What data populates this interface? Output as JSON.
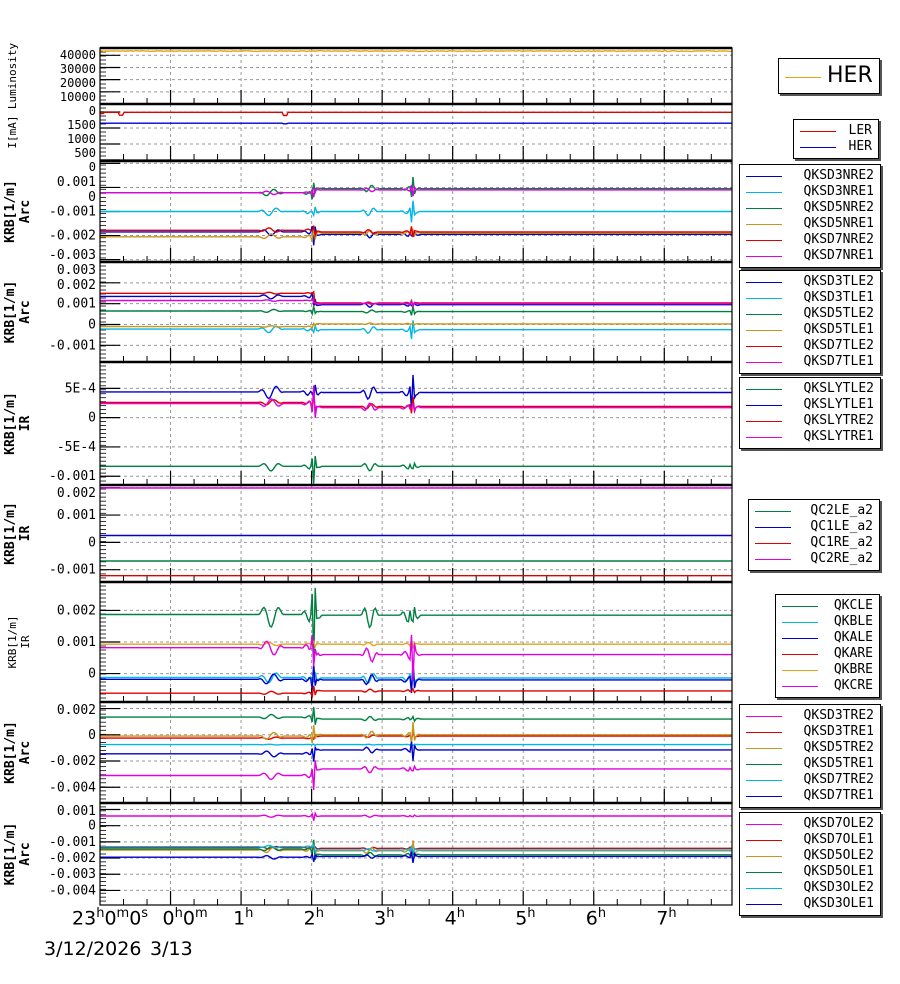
{
  "chart_data": {
    "type": "line",
    "title": "",
    "x_axis": {
      "unit": "hours since 3/13 0h",
      "range": [
        -1,
        7.96
      ],
      "tick_labels": [
        {
          "x": -1,
          "text": "23",
          "sup": "h",
          "tail": "0",
          "sup2": "m",
          "tail2": "0",
          "sup3": "s"
        },
        {
          "x": 0,
          "text": "0",
          "sup": "h",
          "tail": "0",
          "sup2": "m"
        },
        {
          "x": 1,
          "text": "1",
          "sup": "h"
        },
        {
          "x": 2,
          "text": "2",
          "sup": "h"
        },
        {
          "x": 3,
          "text": "3",
          "sup": "h"
        },
        {
          "x": 4,
          "text": "4",
          "sup": "h"
        },
        {
          "x": 5,
          "text": "5",
          "sup": "h"
        },
        {
          "x": 6,
          "text": "6",
          "sup": "h"
        },
        {
          "x": 7,
          "text": "7",
          "sup": "h"
        }
      ],
      "date_labels": [
        "3/12/2026",
        "3/13"
      ],
      "grid": true
    },
    "panels": [
      {
        "id": "luminosity",
        "ylabel": "Luminosity",
        "ylabel_style": "small",
        "ylim": [
          0,
          46000
        ],
        "yticks": [
          0,
          10000,
          20000,
          30000,
          40000
        ],
        "ytick_labels": [
          "0",
          "10000",
          "20000",
          "30000",
          "40000"
        ],
        "legend": {
          "style": "big",
          "entries": [
            {
              "name": "HER",
              "color": "#e8a317"
            }
          ]
        },
        "series": [
          {
            "name": "HER",
            "color": "#e8a317",
            "base": 43500,
            "noise": 600,
            "events": []
          }
        ]
      },
      {
        "id": "current",
        "ylabel": "I[mA]",
        "ylabel_style": "small",
        "ylim": [
          0,
          1750
        ],
        "yticks": [
          0,
          500,
          1000,
          1500
        ],
        "ytick_labels": [
          "0",
          "500",
          "1000",
          "1500"
        ],
        "legend": {
          "style": "normal",
          "entries": [
            {
              "name": "LER",
              "color": "#e00000"
            },
            {
              "name": "HER",
              "color": "#0000cc"
            }
          ]
        },
        "series": [
          {
            "name": "LER",
            "color": "#e00000",
            "base": 1490,
            "dips": [
              [
                -0.7,
                -90
              ],
              [
                1.62,
                -100
              ],
              [
                -0.98,
                -40
              ]
            ]
          },
          {
            "name": "HER",
            "color": "#0000cc",
            "base": 1150,
            "dips": [
              [
                1.62,
                -20
              ]
            ]
          }
        ]
      },
      {
        "id": "arc-nre",
        "ylabel": "KRB[1/m]",
        "ylabel2": "Arc",
        "ylim": [
          -0.0031,
          0.0011
        ],
        "yticks": [
          -0.003,
          -0.002,
          -0.001,
          0,
          0.001
        ],
        "ytick_labels": [
          "-0.003",
          "-0.002",
          "-0.001",
          "0",
          "0.001"
        ],
        "legend": {
          "style": "normal",
          "entries": [
            {
              "name": "QKSD3NRE2",
              "color": "#0000cc"
            },
            {
              "name": "QKSD3NRE1",
              "color": "#00b8e8"
            },
            {
              "name": "QKSD5NRE2",
              "color": "#008040"
            },
            {
              "name": "QKSD5NRE1",
              "color": "#c8961e"
            },
            {
              "name": "QKSD7NRE2",
              "color": "#e00000"
            },
            {
              "name": "QKSD7NRE1",
              "color": "#e000e0"
            }
          ]
        },
        "series": [
          {
            "name": "QKSD3NRE2",
            "color": "#0000cc",
            "base": -0.00185,
            "after": -0.00195,
            "amp": 0.00015
          },
          {
            "name": "QKSD3NRE1",
            "color": "#00b8e8",
            "base": -0.001,
            "after": -0.001,
            "amp": 0.00018
          },
          {
            "name": "QKSD5NRE2",
            "color": "#008040",
            "base": -0.00022,
            "after": -5e-05,
            "amp": 0.00015
          },
          {
            "name": "QKSD5NRE1",
            "color": "#c8961e",
            "base": -0.00205,
            "after": -0.0019,
            "amp": 0.00012
          },
          {
            "name": "QKSD7NRE2",
            "color": "#e00000",
            "base": -0.00178,
            "after": -0.00185,
            "amp": 0.0001
          },
          {
            "name": "QKSD7NRE1",
            "color": "#e000e0",
            "base": -0.00022,
            "after": -0.0001,
            "amp": 8e-05
          }
        ]
      },
      {
        "id": "arc-tle",
        "ylabel": "KRB[1/m]",
        "ylabel2": "Arc",
        "ylim": [
          -0.0018,
          0.003
        ],
        "yticks": [
          -0.001,
          0,
          0.001,
          0.002,
          0.003
        ],
        "ytick_labels": [
          "-0.001",
          "0",
          "0.001",
          "0.002",
          "0.003"
        ],
        "legend": {
          "style": "normal",
          "entries": [
            {
              "name": "QKSD3TLE2",
              "color": "#0000cc"
            },
            {
              "name": "QKSD3TLE1",
              "color": "#00b8e8"
            },
            {
              "name": "QKSD5TLE2",
              "color": "#008040"
            },
            {
              "name": "QKSD5TLE1",
              "color": "#c8961e"
            },
            {
              "name": "QKSD7TLE2",
              "color": "#e00000"
            },
            {
              "name": "QKSD7TLE1",
              "color": "#e000e0"
            }
          ]
        },
        "series": [
          {
            "name": "QKSD3TLE2",
            "color": "#0000cc",
            "base": 0.00135,
            "after": 0.00095,
            "amp": 0.00012
          },
          {
            "name": "QKSD3TLE1",
            "color": "#00b8e8",
            "base": -0.00022,
            "after": -0.00025,
            "amp": 0.00018
          },
          {
            "name": "QKSD5TLE2",
            "color": "#008040",
            "base": 0.00065,
            "after": 0.00062,
            "amp": 8e-05
          },
          {
            "name": "QKSD5TLE1",
            "color": "#c8961e",
            "base": -0.0001,
            "after": 3e-05,
            "amp": 4e-05
          },
          {
            "name": "QKSD7TLE2",
            "color": "#e00000",
            "base": 0.0015,
            "after": 0.00103,
            "amp": 5e-05
          },
          {
            "name": "QKSD7TLE1",
            "color": "#e000e0",
            "base": 0.00115,
            "after": 0.001,
            "amp": 4e-05
          }
        ]
      },
      {
        "id": "ir-slyt",
        "ylabel": "KRB[1/m]",
        "ylabel2": "IR",
        "ylim": [
          -0.00115,
          0.00095
        ],
        "yticks": [
          -0.001,
          -0.0005,
          0,
          0.0005
        ],
        "ytick_labels": [
          "-0.001",
          "-5E-4",
          "0",
          "5E-4"
        ],
        "legend": {
          "style": "normal",
          "entries": [
            {
              "name": "QKSLYTLE2",
              "color": "#008040"
            },
            {
              "name": "QKSLYTLE1",
              "color": "#0000cc"
            },
            {
              "name": "QKSLYTRE2",
              "color": "#e00000"
            },
            {
              "name": "QKSLYTRE1",
              "color": "#e000e0"
            }
          ]
        },
        "series": [
          {
            "name": "QKSLYTLE2",
            "color": "#008040",
            "base": -0.00083,
            "after": -0.00083,
            "amp": 8e-05
          },
          {
            "name": "QKSLYTLE1",
            "color": "#0000cc",
            "base": 0.00044,
            "after": 0.00043,
            "amp": 0.00012
          },
          {
            "name": "QKSLYTRE2",
            "color": "#e00000",
            "base": 0.00026,
            "after": 0.00019,
            "amp": 5e-05
          },
          {
            "name": "QKSLYTRE1",
            "color": "#e000e0",
            "base": 0.00024,
            "after": 0.00017,
            "amp": 8e-05
          }
        ]
      },
      {
        "id": "ir-qc",
        "ylabel": "KRB[1/m]",
        "ylabel2": "IR",
        "ylim": [
          -0.00145,
          0.0021
        ],
        "yticks": [
          -0.001,
          0,
          0.001,
          0.002
        ],
        "ytick_labels": [
          "-0.001",
          "0",
          "0.001",
          "0.002"
        ],
        "legend": {
          "style": "normal",
          "entries": [
            {
              "name": "QC2LE_a2",
              "color": "#008040"
            },
            {
              "name": "QC1LE_a2",
              "color": "#0000cc"
            },
            {
              "name": "QC1RE_a2",
              "color": "#e00000"
            },
            {
              "name": "QC2RE_a2",
              "color": "#e000e0"
            }
          ]
        },
        "series": [
          {
            "name": "QC2LE_a2",
            "color": "#008040",
            "base": -0.00068,
            "after": -0.00068,
            "amp": 0
          },
          {
            "name": "QC1LE_a2",
            "color": "#0000cc",
            "base": 0.00025,
            "after": 0.00025,
            "amp": 0
          },
          {
            "name": "QC1RE_a2",
            "color": "#e00000",
            "base": -0.00122,
            "after": -0.00122,
            "amp": 0
          },
          {
            "name": "QC2RE_a2",
            "color": "#e000e0",
            "base": 0.00199,
            "after": 0.00199,
            "amp": 0
          }
        ]
      },
      {
        "id": "ir-qk",
        "ylabel": "KRB[1/m]",
        "ylabel2": "IR",
        "ylabel_style": "small",
        "ylim": [
          -0.0009,
          0.0029
        ],
        "yticks": [
          0,
          0.001,
          0.002
        ],
        "ytick_labels": [
          "0",
          "0.001",
          "0.002"
        ],
        "legend": {
          "style": "normal",
          "entries": [
            {
              "name": "QKCLE",
              "color": "#008040"
            },
            {
              "name": "QKBLE",
              "color": "#00b8e8"
            },
            {
              "name": "QKALE",
              "color": "#0000cc"
            },
            {
              "name": "QKARE",
              "color": "#e00000"
            },
            {
              "name": "QKBRE",
              "color": "#e8a317"
            },
            {
              "name": "QKCRE",
              "color": "#e000e0"
            }
          ]
        },
        "series": [
          {
            "name": "QKCLE",
            "color": "#008040",
            "base": 0.00187,
            "after": 0.00185,
            "amp": 0.0004
          },
          {
            "name": "QKBLE",
            "color": "#00b8e8",
            "base": -0.00012,
            "after": -0.00014,
            "amp": 0.00018
          },
          {
            "name": "QKALE",
            "color": "#0000cc",
            "base": -0.00018,
            "after": -0.0002,
            "amp": 0.00018
          },
          {
            "name": "QKARE",
            "color": "#e00000",
            "base": -0.00062,
            "after": -0.00055,
            "amp": 6e-05
          },
          {
            "name": "QKBRE",
            "color": "#e8a317",
            "base": 0.00093,
            "after": 0.00093,
            "amp": 6e-05
          },
          {
            "name": "QKCRE",
            "color": "#e000e0",
            "base": 0.00082,
            "after": 0.0006,
            "amp": 0.00025
          }
        ]
      },
      {
        "id": "arc-tre",
        "ylabel": "KRB[1/m]",
        "ylabel2": "Arc",
        "ylim": [
          -0.0052,
          0.0025
        ],
        "yticks": [
          -0.004,
          -0.002,
          0,
          0.002
        ],
        "ytick_labels": [
          "-0.004",
          "-0.002",
          "0",
          "0.002"
        ],
        "legend": {
          "style": "normal",
          "entries": [
            {
              "name": "QKSD3TRE2",
              "color": "#e000e0"
            },
            {
              "name": "QKSD3TRE1",
              "color": "#e00000"
            },
            {
              "name": "QKSD5TRE2",
              "color": "#c8961e"
            },
            {
              "name": "QKSD5TRE1",
              "color": "#008040"
            },
            {
              "name": "QKSD7TRE2",
              "color": "#00b8e8"
            },
            {
              "name": "QKSD7TRE1",
              "color": "#0000cc"
            }
          ]
        },
        "series": [
          {
            "name": "QKSD3TRE2",
            "color": "#e000e0",
            "base": -0.0031,
            "after": -0.0026,
            "amp": 0.0003
          },
          {
            "name": "QKSD3TRE1",
            "color": "#e00000",
            "base": -0.00025,
            "after": -0.0001,
            "amp": 0.0001
          },
          {
            "name": "QKSD5TRE2",
            "color": "#c8961e",
            "base": -0.0001,
            "after": 0.0,
            "amp": 0.0003
          },
          {
            "name": "QKSD5TRE1",
            "color": "#008040",
            "base": 0.00135,
            "after": 0.0012,
            "amp": 0.0002
          },
          {
            "name": "QKSD7TRE2",
            "color": "#00b8e8",
            "base": -0.00075,
            "after": -0.00075,
            "amp": 3e-05
          },
          {
            "name": "QKSD7TRE1",
            "color": "#0000cc",
            "base": -0.00145,
            "after": -0.00115,
            "amp": 0.00025
          }
        ]
      },
      {
        "id": "arc-ole",
        "ylabel": "KRB[1/m]",
        "ylabel2": "Arc",
        "ylim": [
          -0.0049,
          0.0014
        ],
        "yticks": [
          -0.004,
          -0.003,
          -0.002,
          -0.001,
          0,
          0.001
        ],
        "ytick_labels": [
          "-0.004",
          "-0.003",
          "-0.002",
          "-0.001",
          "0",
          "0.001"
        ],
        "legend": {
          "style": "normal",
          "entries": [
            {
              "name": "QKSD7OLE2",
              "color": "#e000e0"
            },
            {
              "name": "QKSD7OLE1",
              "color": "#e00000"
            },
            {
              "name": "QKSD5OLE2",
              "color": "#c8961e"
            },
            {
              "name": "QKSD5OLE1",
              "color": "#008040"
            },
            {
              "name": "QKSD3OLE2",
              "color": "#00b8e8"
            },
            {
              "name": "QKSD3OLE1",
              "color": "#0000cc"
            }
          ]
        },
        "series": [
          {
            "name": "QKSD7OLE2",
            "color": "#e000e0",
            "base": 0.0006,
            "after": 0.0006,
            "amp": 8e-05
          },
          {
            "name": "QKSD7OLE1",
            "color": "#e00000",
            "base": -0.00135,
            "after": -0.0014,
            "amp": 8e-05
          },
          {
            "name": "QKSD5OLE2",
            "color": "#c8961e",
            "base": -0.0015,
            "after": -0.00155,
            "amp": 0.0002
          },
          {
            "name": "QKSD5OLE1",
            "color": "#008040",
            "base": -0.00145,
            "after": -0.0018,
            "amp": 0.00015
          },
          {
            "name": "QKSD3OLE2",
            "color": "#00b8e8",
            "base": -0.0013,
            "after": -0.0015,
            "amp": 8e-05
          },
          {
            "name": "QKSD3OLE1",
            "color": "#0000cc",
            "base": -0.00195,
            "after": -0.0019,
            "amp": 0.00012
          }
        ]
      }
    ]
  }
}
